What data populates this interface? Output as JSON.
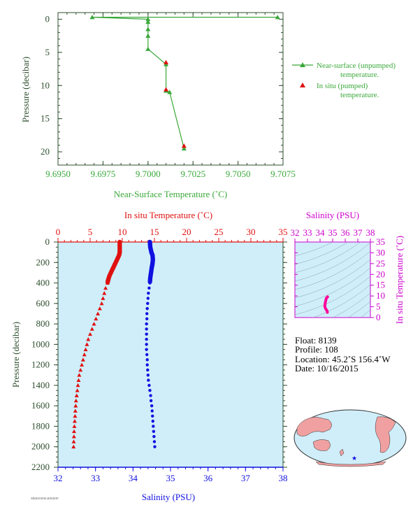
{
  "colors": {
    "top_green": "#3aa83a",
    "axis_green": "#2f4f2f",
    "temp_red": "#e01010",
    "sal_blue": "#1010e0",
    "sal_magenta": "#cc00cc",
    "panel_bg": "#cfeefa",
    "map_land": "#f0a0a0",
    "map_ocean": "#cfeefa"
  },
  "chart_data": [
    {
      "type": "line",
      "xlabel": "Near-Surface Temperature (˚C)",
      "ylabel": "Pressure (decibar)",
      "xlim": [
        9.695,
        9.7075
      ],
      "ylim": [
        22,
        -1
      ],
      "xticks": [
        "9.6950",
        "9.6975",
        "9.7000",
        "9.7025",
        "9.7050",
        "9.7075"
      ],
      "yticks": [
        "0",
        "5",
        "10",
        "15",
        "20"
      ],
      "series": [
        {
          "name": "Near-surface (unpumped) temperature.",
          "marker": "triangle",
          "points": [
            [
              9.7072,
              -0.3
            ],
            [
              9.6969,
              -0.3
            ],
            [
              9.7,
              0
            ],
            [
              9.7,
              0.4
            ],
            [
              9.7,
              1.5
            ],
            [
              9.7,
              2.5
            ],
            [
              9.7,
              4.5
            ],
            [
              9.701,
              6.8
            ],
            [
              9.701,
              10.8
            ],
            [
              9.7012,
              11.0
            ],
            [
              9.702,
              19.5
            ]
          ]
        },
        {
          "name": "In situ (pumped) temperature.",
          "marker": "red-triangle",
          "points": [
            [
              9.701,
              6.5
            ],
            [
              9.701,
              10.6
            ],
            [
              9.702,
              19.1
            ]
          ]
        }
      ],
      "legend": [
        "Near-surface (unpumped)",
        "temperature.",
        "In situ (pumped)",
        "temperature."
      ]
    },
    {
      "type": "scatter",
      "top_axis_label": "In situ Temperature (˚C)",
      "bottom_axis_label": "Salinity (PSU)",
      "ylabel": "Pressure (decibar)",
      "temp_xlim": [
        0,
        35
      ],
      "sal_xlim": [
        32,
        38
      ],
      "ylim": [
        2200,
        0
      ],
      "temp_ticks": [
        "0",
        "5",
        "10",
        "15",
        "20",
        "25",
        "30",
        "35"
      ],
      "sal_ticks": [
        "32",
        "33",
        "34",
        "35",
        "36",
        "37",
        "38"
      ],
      "yticks": [
        "0",
        "200",
        "400",
        "600",
        "800",
        "1000",
        "1200",
        "1400",
        "1600",
        "1800",
        "2000",
        "2200"
      ],
      "temperature_profile": [
        [
          9.6,
          0
        ],
        [
          9.6,
          50
        ],
        [
          9.6,
          100
        ],
        [
          9.5,
          130
        ],
        [
          9.2,
          170
        ],
        [
          8.9,
          210
        ],
        [
          8.6,
          250
        ],
        [
          8.3,
          290
        ],
        [
          8.0,
          330
        ],
        [
          7.8,
          370
        ],
        [
          7.7,
          400
        ],
        [
          7.4,
          450
        ],
        [
          7.2,
          500
        ],
        [
          7.0,
          550
        ],
        [
          6.8,
          600
        ],
        [
          6.5,
          650
        ],
        [
          6.2,
          700
        ],
        [
          5.9,
          750
        ],
        [
          5.6,
          800
        ],
        [
          5.3,
          850
        ],
        [
          5.0,
          900
        ],
        [
          4.7,
          950
        ],
        [
          4.5,
          1000
        ],
        [
          4.3,
          1050
        ],
        [
          4.1,
          1100
        ],
        [
          3.9,
          1150
        ],
        [
          3.7,
          1200
        ],
        [
          3.5,
          1250
        ],
        [
          3.3,
          1300
        ],
        [
          3.2,
          1350
        ],
        [
          3.1,
          1400
        ],
        [
          3.0,
          1450
        ],
        [
          2.9,
          1500
        ],
        [
          2.8,
          1550
        ],
        [
          2.75,
          1600
        ],
        [
          2.7,
          1650
        ],
        [
          2.65,
          1700
        ],
        [
          2.6,
          1750
        ],
        [
          2.55,
          1800
        ],
        [
          2.5,
          1850
        ],
        [
          2.48,
          1900
        ],
        [
          2.45,
          1950
        ],
        [
          2.42,
          2000
        ]
      ],
      "salinity_profile": [
        [
          34.45,
          0
        ],
        [
          34.46,
          50
        ],
        [
          34.49,
          100
        ],
        [
          34.52,
          130
        ],
        [
          34.53,
          170
        ],
        [
          34.52,
          210
        ],
        [
          34.5,
          250
        ],
        [
          34.48,
          300
        ],
        [
          34.46,
          350
        ],
        [
          34.45,
          400
        ],
        [
          34.43,
          450
        ],
        [
          34.41,
          500
        ],
        [
          34.4,
          550
        ],
        [
          34.39,
          600
        ],
        [
          34.38,
          650
        ],
        [
          34.37,
          700
        ],
        [
          34.37,
          750
        ],
        [
          34.36,
          800
        ],
        [
          34.36,
          850
        ],
        [
          34.36,
          900
        ],
        [
          34.36,
          950
        ],
        [
          34.36,
          1000
        ],
        [
          34.36,
          1050
        ],
        [
          34.37,
          1100
        ],
        [
          34.38,
          1150
        ],
        [
          34.38,
          1200
        ],
        [
          34.39,
          1250
        ],
        [
          34.4,
          1300
        ],
        [
          34.41,
          1350
        ],
        [
          34.43,
          1400
        ],
        [
          34.45,
          1450
        ],
        [
          34.47,
          1500
        ],
        [
          34.48,
          1550
        ],
        [
          34.5,
          1600
        ],
        [
          34.51,
          1650
        ],
        [
          34.52,
          1700
        ],
        [
          34.53,
          1750
        ],
        [
          34.54,
          1800
        ],
        [
          34.55,
          1850
        ],
        [
          34.56,
          1900
        ],
        [
          34.57,
          1950
        ],
        [
          34.58,
          2000
        ]
      ]
    },
    {
      "type": "scatter",
      "top_axis_label": "Salinity (PSU)",
      "right_axis_label": "In situ Temperature (˚C)",
      "sal_xlim": [
        32,
        38
      ],
      "temp_ylim": [
        0,
        35
      ],
      "sal_ticks": [
        "32",
        "33",
        "34",
        "35",
        "36",
        "37",
        "38"
      ],
      "temp_ticks": [
        "0",
        "5",
        "10",
        "15",
        "20",
        "25",
        "30",
        "35"
      ],
      "ts_curve": [
        [
          34.6,
          9.6
        ],
        [
          34.5,
          9.0
        ],
        [
          34.45,
          7.8
        ],
        [
          34.4,
          6.5
        ],
        [
          34.38,
          5.0
        ],
        [
          34.45,
          4.0
        ],
        [
          34.55,
          3.2
        ],
        [
          34.58,
          2.4
        ]
      ]
    }
  ],
  "info": {
    "float": "Float:  8139",
    "profile": "Profile:  108",
    "location": "Location:  45.2˚S  156.4˚W",
    "date": "Date:  10/16/2015"
  },
  "footer_code": "AW20151016 20161019"
}
